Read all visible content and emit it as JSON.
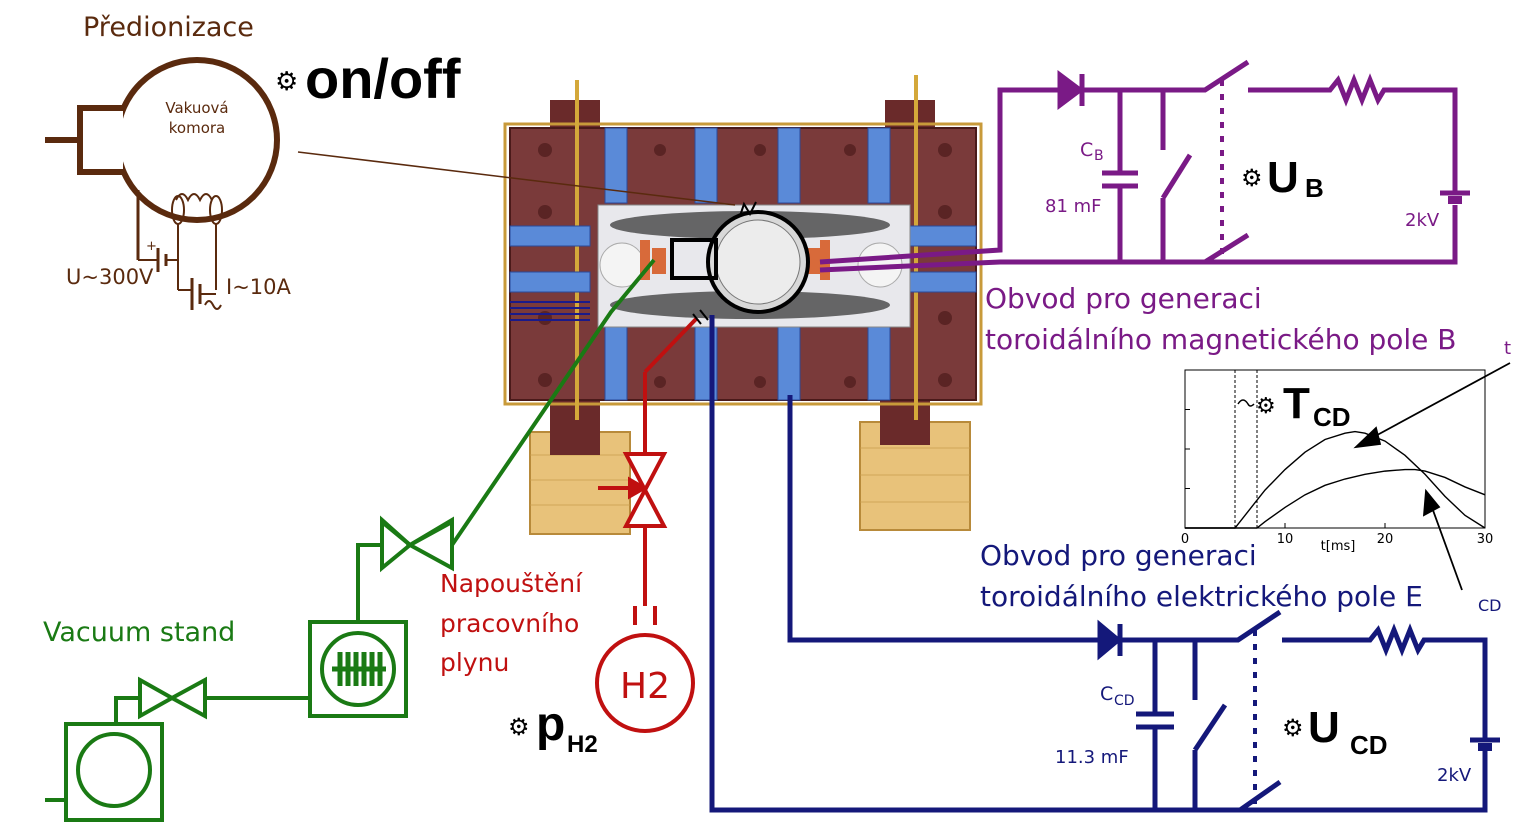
{
  "colors": {
    "preionization": "#5a2a0e",
    "bt_circuit": "#7a1a86",
    "ecd_circuit": "#14187a",
    "vacuum": "#1a7a14",
    "gas": "#c01010",
    "tokamak_plate": "#7a3a3a",
    "coil": "#4a7ad0",
    "wood": "#e8c27a"
  },
  "preionization": {
    "title": "Předionizace",
    "chamber_line1": "Vakuová",
    "chamber_line2": "komora",
    "voltage": "U~300V",
    "current": "I~10A",
    "plus": "+",
    "control": "on/off"
  },
  "bt_circuit": {
    "cap_label": "C",
    "cap_sub": "B",
    "cap_value": "81 mF",
    "voltage_label": "U",
    "voltage_sub": "B",
    "source": "2kV",
    "caption_line1": "Obvod pro generaci",
    "caption_line2": "toroidálního magnetického pole B",
    "caption_sub": "t"
  },
  "ecd_circuit": {
    "cap_label": "C",
    "cap_sub": "CD",
    "cap_value": "11.3 mF",
    "voltage_label": "U",
    "voltage_sub": "CD",
    "source": "2kV",
    "caption_line1": "Obvod pro generaci",
    "caption_line2": "toroidálního elektrického pole E",
    "caption_sub": "CD"
  },
  "timing_chart": {
    "delay_label": "T",
    "delay_sub": "CD",
    "xlabel": "t[ms]",
    "xticks": [
      "0",
      "10",
      "20",
      "30"
    ]
  },
  "gas": {
    "label_line1": "Napouštění",
    "label_line2": "pracovního",
    "label_line3": "plynu",
    "tank": "H2",
    "pressure_label": "p",
    "pressure_sub": "H2"
  },
  "vacuum": {
    "label": "Vacuum stand"
  },
  "chart_data": {
    "type": "line",
    "title": "",
    "xlabel": "t[ms]",
    "ylabel": "",
    "xlim": [
      0,
      30
    ],
    "ylim": [
      0,
      1
    ],
    "xticks": [
      0,
      10,
      20,
      30
    ],
    "markers_x": [
      5,
      7.2
    ],
    "series": [
      {
        "x": [
          0,
          5,
          7,
          8,
          10,
          12,
          14,
          16,
          17,
          18,
          20,
          22,
          24,
          26,
          28,
          30
        ],
        "values": [
          0,
          0,
          0.16,
          0.24,
          0.37,
          0.48,
          0.56,
          0.6,
          0.61,
          0.6,
          0.55,
          0.46,
          0.34,
          0.2,
          0.08,
          0
        ]
      },
      {
        "x": [
          0,
          7.2,
          8,
          10,
          12,
          14,
          16,
          18,
          20,
          22,
          23,
          24,
          26,
          28,
          30
        ],
        "values": [
          0,
          0,
          0.04,
          0.13,
          0.21,
          0.27,
          0.31,
          0.34,
          0.36,
          0.37,
          0.37,
          0.36,
          0.32,
          0.26,
          0.21
        ]
      }
    ]
  }
}
